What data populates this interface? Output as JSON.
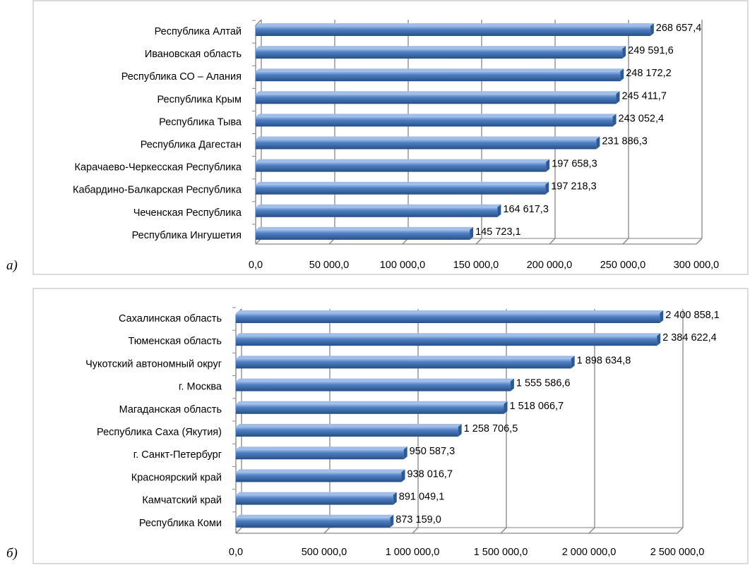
{
  "panels": [
    {
      "label": "а)"
    },
    {
      "label": "б)"
    }
  ],
  "colors": {
    "bar_top": "#9fbde8",
    "bar_face": "#4f7fc2",
    "bar_bottom": "#274f86",
    "bar_end": "#2b5a98",
    "grid": "#868686",
    "frame": "#b9b9b9"
  },
  "chart_data": [
    {
      "type": "bar",
      "orientation": "horizontal",
      "style": "3d",
      "categories": [
        "Республика Алтай",
        "Ивановская область",
        "Республика СО – Алания",
        "Республика  Крым",
        "Республика Тыва",
        "Республика Дагестан",
        "Карачаево-Черкесская Республика",
        "Кабардино-Балкарская Республика",
        "Чеченская Республика",
        "Республика Ингушетия "
      ],
      "values": [
        268657.4,
        249591.6,
        248172.2,
        245411.7,
        243052.4,
        231886.3,
        197658.3,
        197218.3,
        164617.3,
        145723.1
      ],
      "value_labels": [
        "268 657,4",
        "249 591,6",
        "248 172,2",
        "245 411,7",
        "243 052,4",
        "231 886,3",
        "197 658,3",
        "197 218,3",
        "164 617,3",
        "145 723,1"
      ],
      "x_ticks": [
        0,
        50000,
        100000,
        150000,
        200000,
        250000,
        300000
      ],
      "x_tick_labels": [
        "0,0",
        "50 000,0",
        "100 000,0",
        "150 000,0",
        "200 000,0",
        "250 000,0",
        "300 000,0"
      ],
      "xlim": [
        0,
        300000
      ],
      "grid": "vertical"
    },
    {
      "type": "bar",
      "orientation": "horizontal",
      "style": "3d",
      "categories": [
        "Сахалинская область",
        "Тюменская область",
        "Чукотский автономный округ",
        "г. Москва",
        "Магаданская область",
        "Республика Саха (Якутия)",
        "г. Санкт-Петербург",
        "Красноярский край",
        "Камчатский край",
        "Республика Коми"
      ],
      "values": [
        2400858.1,
        2384622.4,
        1898634.8,
        1555586.6,
        1518066.7,
        1258706.5,
        950587.3,
        938016.7,
        891049.1,
        873159.0
      ],
      "value_labels": [
        "2 400 858,1",
        "2 384 622,4",
        "1 898 634,8",
        "1 555 586,6",
        "1 518 066,7",
        "1 258 706,5",
        "950 587,3",
        "938 016,7",
        "891 049,1",
        "873 159,0"
      ],
      "x_ticks": [
        0,
        500000,
        1000000,
        1500000,
        2000000,
        2500000
      ],
      "x_tick_labels": [
        "0,0",
        "500 000,0",
        "1 000 000,0",
        "1 500 000,0",
        "2 000 000,0",
        "2 500 000,0"
      ],
      "xlim": [
        0,
        2500000
      ],
      "grid": "vertical"
    }
  ]
}
